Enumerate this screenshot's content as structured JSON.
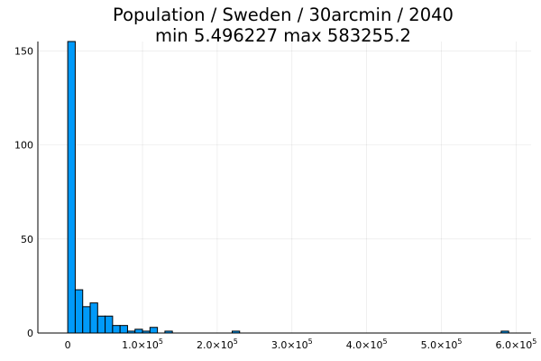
{
  "chart_data": {
    "type": "bar",
    "title_line1": "Population / Sweden / 30arcmin / 2040",
    "title_line2": "min 5.496227  max 583255.2",
    "xlabel": "",
    "ylabel": "",
    "xlim": [
      -40000,
      620000
    ],
    "ylim": [
      0,
      155
    ],
    "grid": true,
    "legend": "none",
    "bar_color": "#009af9",
    "bin_width": 10000,
    "x_ticks": [
      {
        "value": 0,
        "mant": "0",
        "exp": ""
      },
      {
        "value": 100000,
        "mant": "1.0×10",
        "exp": "5"
      },
      {
        "value": 200000,
        "mant": "2.0×10",
        "exp": "5"
      },
      {
        "value": 300000,
        "mant": "3.0×10",
        "exp": "5"
      },
      {
        "value": 400000,
        "mant": "4.0×10",
        "exp": "5"
      },
      {
        "value": 500000,
        "mant": "5.0×10",
        "exp": "5"
      },
      {
        "value": 600000,
        "mant": "6.0×10",
        "exp": "5"
      }
    ],
    "y_ticks": [
      {
        "value": 0,
        "label": "0"
      },
      {
        "value": 50,
        "label": "50"
      },
      {
        "value": 100,
        "label": "100"
      },
      {
        "value": 150,
        "label": "150"
      }
    ],
    "bins": [
      {
        "start": 0,
        "count": 155
      },
      {
        "start": 10000,
        "count": 23
      },
      {
        "start": 20000,
        "count": 14
      },
      {
        "start": 30000,
        "count": 16
      },
      {
        "start": 40000,
        "count": 9
      },
      {
        "start": 50000,
        "count": 9
      },
      {
        "start": 60000,
        "count": 4
      },
      {
        "start": 70000,
        "count": 4
      },
      {
        "start": 80000,
        "count": 1
      },
      {
        "start": 90000,
        "count": 2
      },
      {
        "start": 100000,
        "count": 1
      },
      {
        "start": 110000,
        "count": 3
      },
      {
        "start": 130000,
        "count": 1
      },
      {
        "start": 220000,
        "count": 1
      },
      {
        "start": 580000,
        "count": 1
      }
    ]
  }
}
